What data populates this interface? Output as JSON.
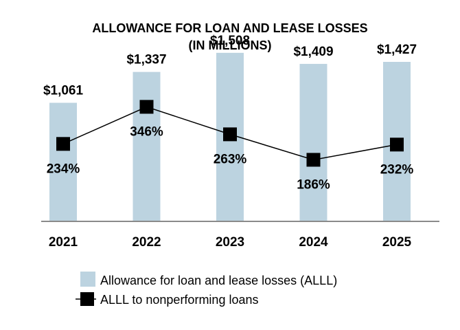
{
  "chart_data": {
    "type": "bar",
    "title": "ALLOWANCE FOR LOAN AND LEASE LOSSES",
    "subtitle": "(IN MILLIONS)",
    "categories": [
      "2021",
      "2022",
      "2023",
      "2024",
      "2025"
    ],
    "series": [
      {
        "name": "Allowance for loan and lease losses (ALLL)",
        "type": "bar",
        "values": [
          1061,
          1337,
          1508,
          1409,
          1427
        ],
        "labels": [
          "$1,061",
          "$1,337",
          "$1,508",
          "$1,409",
          "$1,427"
        ],
        "color": "#bcd3e0"
      },
      {
        "name": "ALLL to nonperforming loans",
        "type": "line",
        "values": [
          234,
          346,
          263,
          186,
          232
        ],
        "labels": [
          "234%",
          "346%",
          "263%",
          "186%",
          "232%"
        ],
        "color": "#000000"
      }
    ],
    "ylim": [
      0,
      1630
    ],
    "secondary_ylim": [
      0,
      540
    ],
    "grid": false,
    "legend_position": "bottom"
  }
}
